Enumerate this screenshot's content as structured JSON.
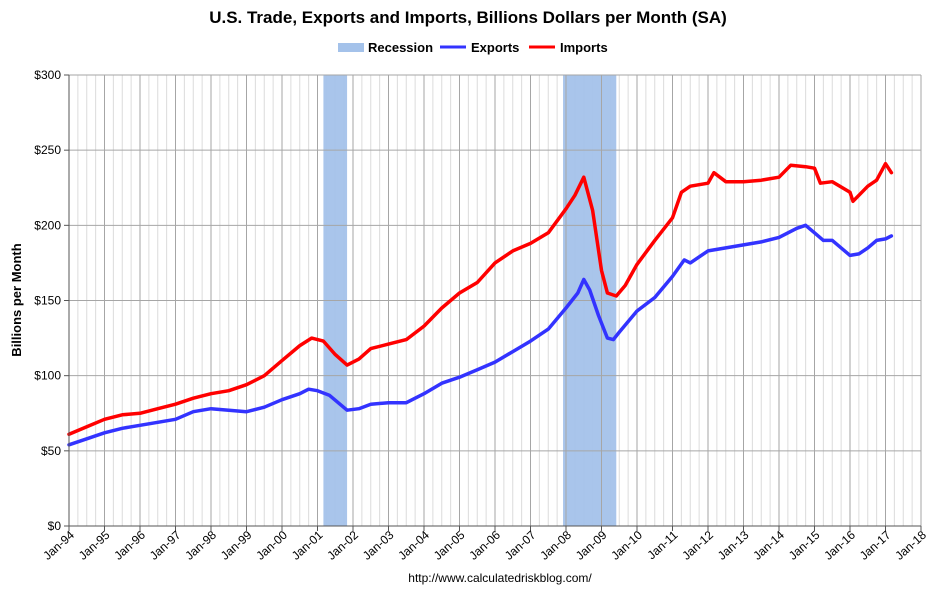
{
  "chart_data": {
    "type": "line",
    "title": "U.S. Trade, Exports and Imports, Billions Dollars per Month (SA)",
    "ylabel": "Billions per Month",
    "source": "http://www.calculatedriskblog.com/",
    "ylim": [
      0,
      300
    ],
    "xlim": [
      "1994-01",
      "2018-01"
    ],
    "y_ticks": [
      "$0",
      "$50",
      "$100",
      "$150",
      "$200",
      "$250",
      "$300"
    ],
    "x_ticks": [
      "Jan-94",
      "Jan-95",
      "Jan-96",
      "Jan-97",
      "Jan-98",
      "Jan-99",
      "Jan-00",
      "Jan-01",
      "Jan-02",
      "Jan-03",
      "Jan-04",
      "Jan-05",
      "Jan-06",
      "Jan-07",
      "Jan-08",
      "Jan-09",
      "Jan-10",
      "Jan-11",
      "Jan-12",
      "Jan-13",
      "Jan-14",
      "Jan-15",
      "Jan-16",
      "Jan-17",
      "Jan-18"
    ],
    "grid": true,
    "legend_position": "top-center",
    "recessions": [
      {
        "name": "Recession",
        "start": "2001-03",
        "end": "2001-11"
      },
      {
        "name": "Recession",
        "start": "2007-12",
        "end": "2009-06"
      }
    ],
    "series": [
      {
        "name": "Recession",
        "color": "#a4c2ea",
        "kind": "band"
      },
      {
        "name": "Exports",
        "color": "#3333ff",
        "points": [
          [
            "1994-01",
            54
          ],
          [
            "1994-07",
            58
          ],
          [
            "1995-01",
            62
          ],
          [
            "1995-07",
            65
          ],
          [
            "1996-01",
            67
          ],
          [
            "1996-07",
            69
          ],
          [
            "1997-01",
            71
          ],
          [
            "1997-07",
            76
          ],
          [
            "1998-01",
            78
          ],
          [
            "1998-07",
            77
          ],
          [
            "1999-01",
            76
          ],
          [
            "1999-07",
            79
          ],
          [
            "2000-01",
            84
          ],
          [
            "2000-07",
            88
          ],
          [
            "2000-10",
            91
          ],
          [
            "2001-01",
            90
          ],
          [
            "2001-05",
            87
          ],
          [
            "2001-08",
            82
          ],
          [
            "2001-11",
            77
          ],
          [
            "2002-03",
            78
          ],
          [
            "2002-07",
            81
          ],
          [
            "2003-01",
            82
          ],
          [
            "2003-07",
            82
          ],
          [
            "2004-01",
            88
          ],
          [
            "2004-07",
            95
          ],
          [
            "2005-01",
            99
          ],
          [
            "2005-07",
            104
          ],
          [
            "2006-01",
            109
          ],
          [
            "2006-07",
            116
          ],
          [
            "2007-01",
            123
          ],
          [
            "2007-07",
            131
          ],
          [
            "2008-01",
            145
          ],
          [
            "2008-05",
            155
          ],
          [
            "2008-07",
            164
          ],
          [
            "2008-09",
            157
          ],
          [
            "2008-12",
            140
          ],
          [
            "2009-03",
            125
          ],
          [
            "2009-05",
            124
          ],
          [
            "2009-07",
            129
          ],
          [
            "2010-01",
            143
          ],
          [
            "2010-07",
            152
          ],
          [
            "2011-01",
            166
          ],
          [
            "2011-05",
            177
          ],
          [
            "2011-07",
            175
          ],
          [
            "2012-01",
            183
          ],
          [
            "2012-07",
            185
          ],
          [
            "2013-01",
            187
          ],
          [
            "2013-07",
            189
          ],
          [
            "2014-01",
            192
          ],
          [
            "2014-07",
            198
          ],
          [
            "2014-10",
            200
          ],
          [
            "2015-01",
            195
          ],
          [
            "2015-04",
            190
          ],
          [
            "2015-07",
            190
          ],
          [
            "2016-01",
            180
          ],
          [
            "2016-04",
            181
          ],
          [
            "2016-07",
            185
          ],
          [
            "2016-10",
            190
          ],
          [
            "2017-01",
            191
          ],
          [
            "2017-03",
            193
          ]
        ]
      },
      {
        "name": "Imports",
        "color": "#ff0000",
        "points": [
          [
            "1994-01",
            61
          ],
          [
            "1994-07",
            66
          ],
          [
            "1995-01",
            71
          ],
          [
            "1995-07",
            74
          ],
          [
            "1996-01",
            75
          ],
          [
            "1996-07",
            78
          ],
          [
            "1997-01",
            81
          ],
          [
            "1997-07",
            85
          ],
          [
            "1998-01",
            88
          ],
          [
            "1998-07",
            90
          ],
          [
            "1999-01",
            94
          ],
          [
            "1999-07",
            100
          ],
          [
            "2000-01",
            110
          ],
          [
            "2000-07",
            120
          ],
          [
            "2000-11",
            125
          ],
          [
            "2001-03",
            123
          ],
          [
            "2001-07",
            114
          ],
          [
            "2001-11",
            107
          ],
          [
            "2002-03",
            111
          ],
          [
            "2002-07",
            118
          ],
          [
            "2003-01",
            121
          ],
          [
            "2003-07",
            124
          ],
          [
            "2004-01",
            133
          ],
          [
            "2004-07",
            145
          ],
          [
            "2005-01",
            155
          ],
          [
            "2005-07",
            162
          ],
          [
            "2006-01",
            175
          ],
          [
            "2006-07",
            183
          ],
          [
            "2007-01",
            188
          ],
          [
            "2007-07",
            195
          ],
          [
            "2008-01",
            211
          ],
          [
            "2008-04",
            220
          ],
          [
            "2008-07",
            232
          ],
          [
            "2008-10",
            210
          ],
          [
            "2009-01",
            170
          ],
          [
            "2009-03",
            155
          ],
          [
            "2009-06",
            153
          ],
          [
            "2009-09",
            160
          ],
          [
            "2010-01",
            174
          ],
          [
            "2010-07",
            190
          ],
          [
            "2011-01",
            205
          ],
          [
            "2011-04",
            222
          ],
          [
            "2011-07",
            226
          ],
          [
            "2012-01",
            228
          ],
          [
            "2012-03",
            235
          ],
          [
            "2012-07",
            229
          ],
          [
            "2013-01",
            229
          ],
          [
            "2013-07",
            230
          ],
          [
            "2014-01",
            232
          ],
          [
            "2014-05",
            240
          ],
          [
            "2014-10",
            239
          ],
          [
            "2015-01",
            238
          ],
          [
            "2015-03",
            228
          ],
          [
            "2015-07",
            229
          ],
          [
            "2016-01",
            222
          ],
          [
            "2016-02",
            216
          ],
          [
            "2016-07",
            226
          ],
          [
            "2016-10",
            230
          ],
          [
            "2017-01",
            241
          ],
          [
            "2017-03",
            235
          ]
        ]
      }
    ]
  }
}
